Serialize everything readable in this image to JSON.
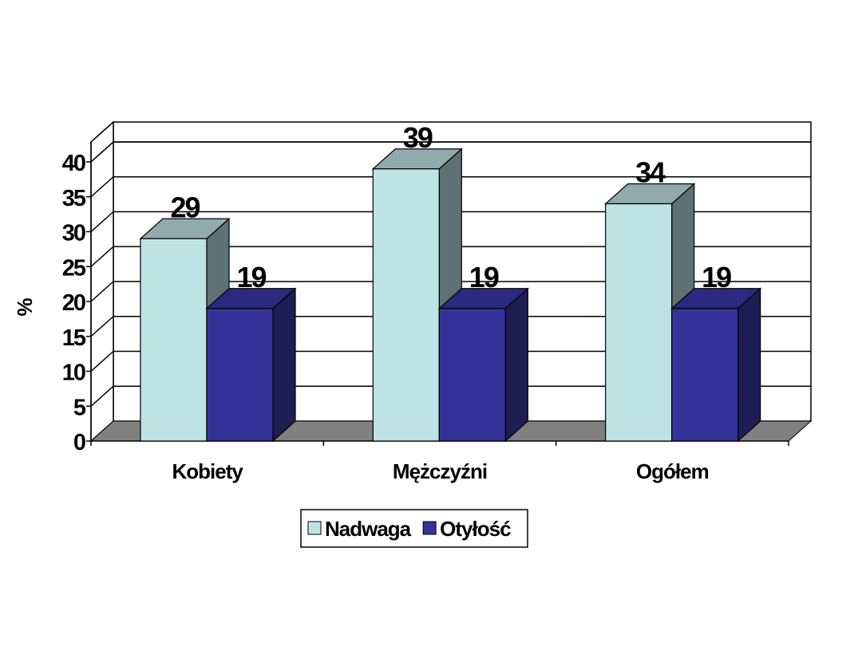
{
  "chart_data": {
    "type": "bar",
    "title": "",
    "xlabel": "",
    "ylabel": "%",
    "categories": [
      "Kobiety",
      "Mężczyźni",
      "Ogółem"
    ],
    "series": [
      {
        "name": "Nadwaga",
        "values": [
          29,
          39,
          34
        ],
        "color": "#BEE3E4",
        "top_color": "#92AAAB",
        "side_color": "#5E7173"
      },
      {
        "name": "Otyłość",
        "values": [
          19,
          19,
          19
        ],
        "color": "#333399",
        "top_color": "#2A2A80",
        "side_color": "#1E1E52"
      }
    ],
    "y_ticks": [
      "0",
      "5",
      "10",
      "15",
      "20",
      "25",
      "30",
      "35",
      "40"
    ],
    "ylim": [
      0,
      40
    ],
    "grid": true,
    "legend_position": "bottom-center",
    "data_labels": true,
    "floor_color": "#808080",
    "style": "3d-clustered-column"
  }
}
